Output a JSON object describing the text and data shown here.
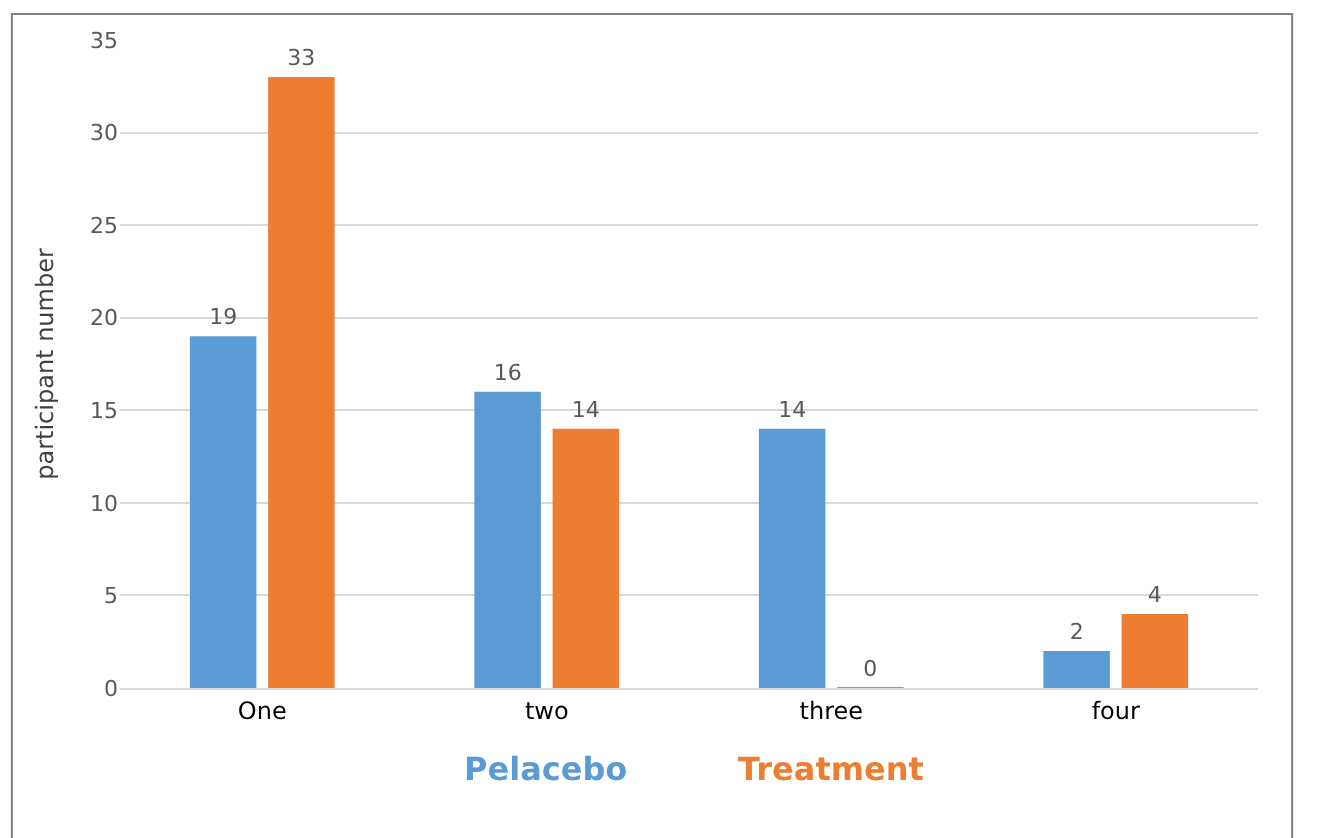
{
  "chart_data": {
    "type": "bar",
    "ylabel": "participant number",
    "categories": [
      "One",
      "two",
      "three",
      "four"
    ],
    "series": [
      {
        "name": "Pelacebo",
        "color": "#5b9bd5",
        "values": [
          19,
          16,
          14,
          2
        ]
      },
      {
        "name": "Treatment",
        "color": "#ed7d31",
        "values": [
          33,
          14,
          0,
          4
        ]
      }
    ],
    "ylim": [
      0,
      35
    ],
    "yticks": [
      0,
      5,
      10,
      15,
      20,
      25,
      30,
      35
    ],
    "grid": "y",
    "legend": "bottom",
    "data_labels": true
  }
}
